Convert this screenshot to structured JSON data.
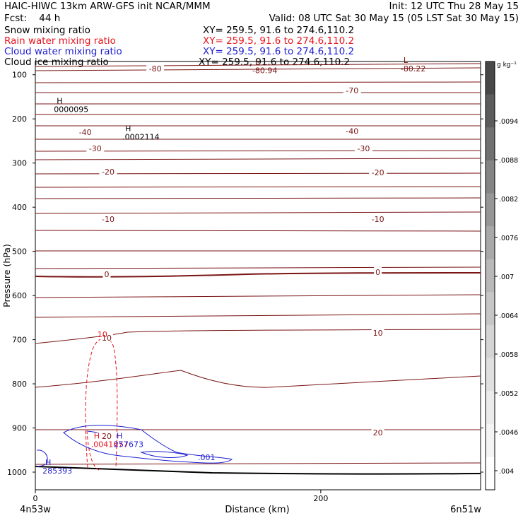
{
  "header": {
    "model_line": "HAIC-HIWC 13km ARW-GFS init   NCAR/MMM",
    "init_line": "Init: 12 UTC Thu 28 May 15",
    "fcst_line": "Fcst:    44 h",
    "valid_line": "Valid: 08 UTC Sat 30 May 15 (05 LST Sat 30 May 15)"
  },
  "fields": [
    {
      "name": "Snow mixing ratio",
      "xy": "XY= 259.5, 91.6 to 274.6,110.2",
      "color": "#000000"
    },
    {
      "name": "Rain water mixing ratio",
      "xy": "XY= 259.5, 91.6 to 274.6,110.2",
      "color": "#e8141e"
    },
    {
      "name": "Cloud water mixing ratio",
      "xy": "XY= 259.5, 91.6 to 274.6,110.2",
      "color": "#1e1ed2"
    },
    {
      "name": "Cloud ice mixing ratio",
      "xy": "XY= 259.5, 91.6 to 274.6,110.2",
      "color": "#000000"
    }
  ],
  "chart_data": {
    "type": "cross-section contour",
    "ylabel": "Pressure (hPa)",
    "xlabel": "Distance (km)",
    "x_start_label": "4n53w",
    "x_end_label": "6n51w",
    "xlim": [
      0,
      312
    ],
    "x_ticks": [
      0,
      200
    ],
    "ylim": [
      1040,
      70
    ],
    "y_ticks": [
      100,
      200,
      300,
      400,
      500,
      600,
      700,
      800,
      900,
      1000
    ],
    "temperature_contours": {
      "color": "#7a1414",
      "labels": [
        {
          "text": "-80",
          "x": 84,
          "p": 86
        },
        {
          "text": "-70",
          "x": 222,
          "p": 136
        },
        {
          "text": "-40",
          "x": 35,
          "p": 230
        },
        {
          "text": "-40",
          "x": 222,
          "p": 228
        },
        {
          "text": "-30",
          "x": 42,
          "p": 267
        },
        {
          "text": "-30",
          "x": 230,
          "p": 267
        },
        {
          "text": "-20",
          "x": 51,
          "p": 320
        },
        {
          "text": "-20",
          "x": 240,
          "p": 321
        },
        {
          "text": "-10",
          "x": 51,
          "p": 427
        },
        {
          "text": "-10",
          "x": 240,
          "p": 427
        },
        {
          "text": "0",
          "x": 50,
          "p": 552
        },
        {
          "text": "0",
          "x": 240,
          "p": 547
        },
        {
          "text": "10",
          "x": 50,
          "p": 696
        },
        {
          "text": "10",
          "x": 240,
          "p": 685
        },
        {
          "text": "20",
          "x": 50,
          "p": 918
        },
        {
          "text": "20",
          "x": 240,
          "p": 910
        }
      ]
    },
    "extrema": [
      {
        "marker": "L",
        "value": "-80.94",
        "x": 152,
        "p": 84,
        "color": "#7a1414"
      },
      {
        "marker": "L",
        "value": "-80.22",
        "x": 256,
        "p": 80,
        "color": "#7a1414"
      },
      {
        "marker": "H",
        "value": "0000095",
        "x": 13,
        "p": 172,
        "color": "#000000"
      },
      {
        "marker": "H",
        "value": ".0002114",
        "x": 61,
        "p": 234,
        "color": "#000000"
      },
      {
        "marker": "H",
        "value": ".0041677",
        "x": 39,
        "p": 930,
        "color": "#e8141e"
      },
      {
        "marker": "H",
        "value": "257673",
        "x": 55,
        "p": 930,
        "color": "#1e1ed2"
      },
      {
        "marker": "H",
        "value": "285393",
        "x": 5,
        "p": 990,
        "color": "#1e1ed2"
      }
    ],
    "contour_labels": [
      {
        "text": "10",
        "x": 47,
        "p": 688,
        "color": "#e8141e"
      },
      {
        "text": ".001",
        "x": 120,
        "p": 966,
        "color": "#1e1ed2"
      }
    ],
    "colorbar": {
      "unit": "g kg⁻¹",
      "labels": [
        ".0094",
        ".0088",
        ".0082",
        ".0076",
        ".007",
        ".0064",
        ".0058",
        ".0052",
        ".0046",
        ".004"
      ],
      "colors_top_to_bottom": [
        "#484848",
        "#5c5c5c",
        "#707070",
        "#848484",
        "#969696",
        "#a8a8a8",
        "#b8b8b8",
        "#c6c6c6",
        "#d4d4d4",
        "#e0e0e0",
        "#ebebeb",
        "#f4f4f4",
        "#ffffff"
      ]
    }
  }
}
